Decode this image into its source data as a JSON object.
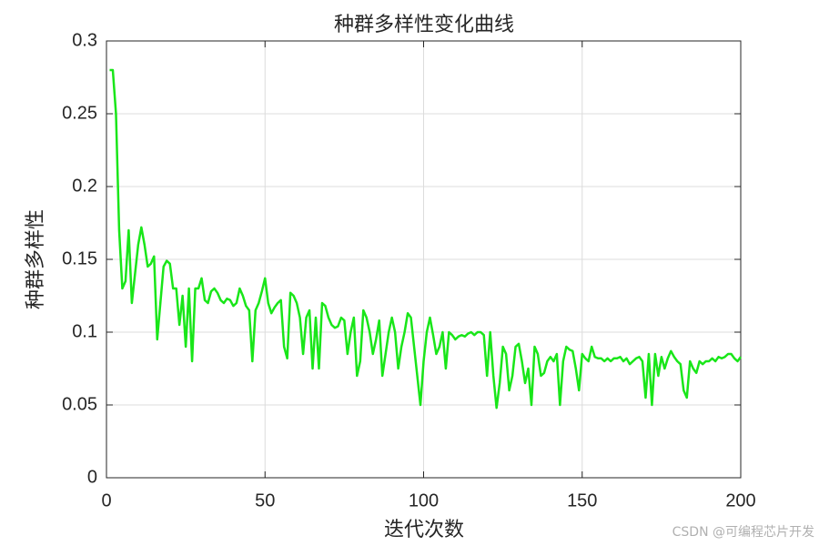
{
  "chart_data": {
    "type": "line",
    "title": "种群多样性变化曲线",
    "xlabel": "迭代次数",
    "ylabel": "种群多样性",
    "watermark": "CSDN @可编程芯片开发",
    "x": [
      1,
      2,
      3,
      4,
      5,
      6,
      7,
      8,
      9,
      10,
      11,
      12,
      13,
      14,
      15,
      16,
      17,
      18,
      19,
      20,
      21,
      22,
      23,
      24,
      25,
      26,
      27,
      28,
      29,
      30,
      31,
      32,
      33,
      34,
      35,
      36,
      37,
      38,
      39,
      40,
      41,
      42,
      43,
      44,
      45,
      46,
      47,
      48,
      49,
      50,
      51,
      52,
      53,
      54,
      55,
      56,
      57,
      58,
      59,
      60,
      61,
      62,
      63,
      64,
      65,
      66,
      67,
      68,
      69,
      70,
      71,
      72,
      73,
      74,
      75,
      76,
      77,
      78,
      79,
      80,
      81,
      82,
      83,
      84,
      85,
      86,
      87,
      88,
      89,
      90,
      91,
      92,
      93,
      94,
      95,
      96,
      97,
      98,
      99,
      100,
      101,
      102,
      103,
      104,
      105,
      106,
      107,
      108,
      109,
      110,
      111,
      112,
      113,
      114,
      115,
      116,
      117,
      118,
      119,
      120,
      121,
      122,
      123,
      124,
      125,
      126,
      127,
      128,
      129,
      130,
      131,
      132,
      133,
      134,
      135,
      136,
      137,
      138,
      139,
      140,
      141,
      142,
      143,
      144,
      145,
      146,
      147,
      148,
      149,
      150,
      151,
      152,
      153,
      154,
      155,
      156,
      157,
      158,
      159,
      160,
      161,
      162,
      163,
      164,
      165,
      166,
      167,
      168,
      169,
      170,
      171,
      172,
      173,
      174,
      175,
      176,
      177,
      178,
      179,
      180,
      181,
      182,
      183,
      184,
      185,
      186,
      187,
      188,
      189,
      190,
      191,
      192,
      193,
      194,
      195,
      196,
      197,
      198,
      199,
      200
    ],
    "series": [
      {
        "color": "#19e619",
        "values": [
          0.28,
          0.28,
          0.25,
          0.17,
          0.13,
          0.135,
          0.17,
          0.12,
          0.14,
          0.16,
          0.172,
          0.16,
          0.145,
          0.147,
          0.152,
          0.095,
          0.12,
          0.145,
          0.149,
          0.147,
          0.13,
          0.13,
          0.105,
          0.125,
          0.09,
          0.13,
          0.08,
          0.13,
          0.13,
          0.137,
          0.122,
          0.12,
          0.128,
          0.13,
          0.127,
          0.122,
          0.12,
          0.123,
          0.122,
          0.118,
          0.12,
          0.13,
          0.125,
          0.118,
          0.115,
          0.08,
          0.115,
          0.12,
          0.128,
          0.137,
          0.12,
          0.113,
          0.117,
          0.12,
          0.122,
          0.09,
          0.082,
          0.127,
          0.125,
          0.12,
          0.11,
          0.085,
          0.11,
          0.115,
          0.075,
          0.11,
          0.075,
          0.12,
          0.118,
          0.11,
          0.105,
          0.103,
          0.104,
          0.11,
          0.108,
          0.085,
          0.1,
          0.11,
          0.07,
          0.08,
          0.115,
          0.11,
          0.1,
          0.085,
          0.095,
          0.108,
          0.07,
          0.085,
          0.1,
          0.11,
          0.1,
          0.075,
          0.09,
          0.1,
          0.113,
          0.11,
          0.09,
          0.07,
          0.05,
          0.08,
          0.1,
          0.11,
          0.098,
          0.085,
          0.09,
          0.1,
          0.075,
          0.1,
          0.098,
          0.095,
          0.097,
          0.098,
          0.097,
          0.099,
          0.1,
          0.098,
          0.1,
          0.1,
          0.098,
          0.07,
          0.1,
          0.07,
          0.048,
          0.065,
          0.09,
          0.085,
          0.06,
          0.07,
          0.09,
          0.092,
          0.08,
          0.065,
          0.075,
          0.05,
          0.09,
          0.085,
          0.07,
          0.072,
          0.08,
          0.083,
          0.08,
          0.085,
          0.05,
          0.08,
          0.09,
          0.088,
          0.087,
          0.075,
          0.06,
          0.085,
          0.082,
          0.08,
          0.09,
          0.083,
          0.082,
          0.082,
          0.08,
          0.082,
          0.08,
          0.082,
          0.082,
          0.083,
          0.08,
          0.082,
          0.078,
          0.08,
          0.082,
          0.083,
          0.08,
          0.055,
          0.085,
          0.05,
          0.085,
          0.07,
          0.083,
          0.075,
          0.082,
          0.087,
          0.083,
          0.08,
          0.078,
          0.06,
          0.055,
          0.08,
          0.075,
          0.072,
          0.08,
          0.078,
          0.08,
          0.08,
          0.082,
          0.08,
          0.083,
          0.082,
          0.083,
          0.085,
          0.085,
          0.082,
          0.08,
          0.083
        ]
      }
    ],
    "xlim": [
      0,
      200
    ],
    "ylim": [
      0,
      0.3
    ],
    "xticks": [
      0,
      50,
      100,
      150,
      200
    ],
    "yticks": [
      0,
      0.05,
      0.1,
      0.15,
      0.2,
      0.25,
      0.3
    ],
    "grid": true
  }
}
